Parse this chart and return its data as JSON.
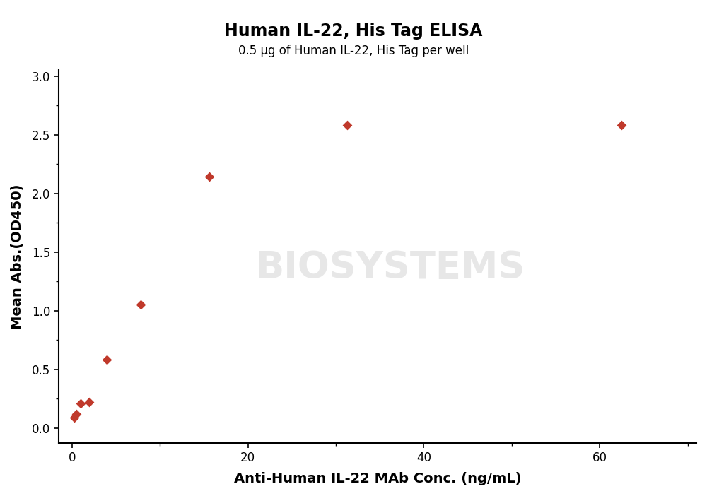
{
  "title": "Human IL-22, His Tag ELISA",
  "subtitle": "0.5 μg of Human IL-22, His Tag per well",
  "xlabel": "Anti-Human IL-22 MAb Conc. (ng/mL)",
  "ylabel": "Mean Abs.(OD450)",
  "data_x": [
    0.244,
    0.488,
    0.977,
    1.953,
    3.906,
    7.813,
    15.625,
    31.25,
    62.5
  ],
  "data_y": [
    0.09,
    0.12,
    0.21,
    0.22,
    0.58,
    1.05,
    2.14,
    2.58,
    2.58
  ],
  "xlim": [
    -1.5,
    71
  ],
  "ylim": [
    -0.13,
    3.05
  ],
  "xticks": [
    0,
    20,
    40,
    60
  ],
  "yticks": [
    0.0,
    0.5,
    1.0,
    1.5,
    2.0,
    2.5,
    3.0
  ],
  "color": "#C0392B",
  "marker": "D",
  "marker_size": 7,
  "line_width": 2.0,
  "title_fontsize": 17,
  "subtitle_fontsize": 12,
  "axis_label_fontsize": 14,
  "tick_fontsize": 12,
  "watermark_text": "BIOSYSTEMS",
  "background_color": "#FFFFFF",
  "fig_width": 10.0,
  "fig_height": 7.02
}
